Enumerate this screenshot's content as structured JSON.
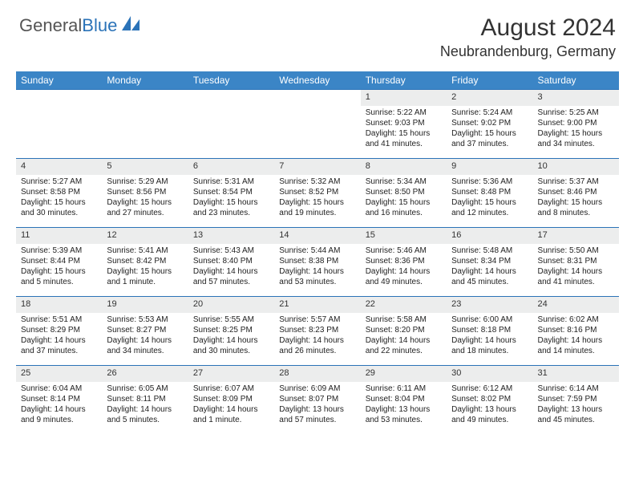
{
  "brand": {
    "name_part1": "General",
    "name_part2": "Blue"
  },
  "title": "August 2024",
  "location": "Neubrandenburg, Germany",
  "colors": {
    "header_bg": "#3b85c6",
    "header_text": "#ffffff",
    "daynum_bg": "#eceded",
    "border": "#2b73b8",
    "brand_gray": "#555555",
    "brand_blue": "#2b73b8",
    "text": "#222222"
  },
  "typography": {
    "title_fontsize": 30,
    "location_fontsize": 18,
    "weekday_fontsize": 12,
    "daynum_fontsize": 11,
    "cell_fontsize": 10
  },
  "weekdays": [
    "Sunday",
    "Monday",
    "Tuesday",
    "Wednesday",
    "Thursday",
    "Friday",
    "Saturday"
  ],
  "weeks": [
    [
      null,
      null,
      null,
      null,
      {
        "n": "1",
        "sr": "5:22 AM",
        "ss": "9:03 PM",
        "dl": "15 hours and 41 minutes."
      },
      {
        "n": "2",
        "sr": "5:24 AM",
        "ss": "9:02 PM",
        "dl": "15 hours and 37 minutes."
      },
      {
        "n": "3",
        "sr": "5:25 AM",
        "ss": "9:00 PM",
        "dl": "15 hours and 34 minutes."
      }
    ],
    [
      {
        "n": "4",
        "sr": "5:27 AM",
        "ss": "8:58 PM",
        "dl": "15 hours and 30 minutes."
      },
      {
        "n": "5",
        "sr": "5:29 AM",
        "ss": "8:56 PM",
        "dl": "15 hours and 27 minutes."
      },
      {
        "n": "6",
        "sr": "5:31 AM",
        "ss": "8:54 PM",
        "dl": "15 hours and 23 minutes."
      },
      {
        "n": "7",
        "sr": "5:32 AM",
        "ss": "8:52 PM",
        "dl": "15 hours and 19 minutes."
      },
      {
        "n": "8",
        "sr": "5:34 AM",
        "ss": "8:50 PM",
        "dl": "15 hours and 16 minutes."
      },
      {
        "n": "9",
        "sr": "5:36 AM",
        "ss": "8:48 PM",
        "dl": "15 hours and 12 minutes."
      },
      {
        "n": "10",
        "sr": "5:37 AM",
        "ss": "8:46 PM",
        "dl": "15 hours and 8 minutes."
      }
    ],
    [
      {
        "n": "11",
        "sr": "5:39 AM",
        "ss": "8:44 PM",
        "dl": "15 hours and 5 minutes."
      },
      {
        "n": "12",
        "sr": "5:41 AM",
        "ss": "8:42 PM",
        "dl": "15 hours and 1 minute."
      },
      {
        "n": "13",
        "sr": "5:43 AM",
        "ss": "8:40 PM",
        "dl": "14 hours and 57 minutes."
      },
      {
        "n": "14",
        "sr": "5:44 AM",
        "ss": "8:38 PM",
        "dl": "14 hours and 53 minutes."
      },
      {
        "n": "15",
        "sr": "5:46 AM",
        "ss": "8:36 PM",
        "dl": "14 hours and 49 minutes."
      },
      {
        "n": "16",
        "sr": "5:48 AM",
        "ss": "8:34 PM",
        "dl": "14 hours and 45 minutes."
      },
      {
        "n": "17",
        "sr": "5:50 AM",
        "ss": "8:31 PM",
        "dl": "14 hours and 41 minutes."
      }
    ],
    [
      {
        "n": "18",
        "sr": "5:51 AM",
        "ss": "8:29 PM",
        "dl": "14 hours and 37 minutes."
      },
      {
        "n": "19",
        "sr": "5:53 AM",
        "ss": "8:27 PM",
        "dl": "14 hours and 34 minutes."
      },
      {
        "n": "20",
        "sr": "5:55 AM",
        "ss": "8:25 PM",
        "dl": "14 hours and 30 minutes."
      },
      {
        "n": "21",
        "sr": "5:57 AM",
        "ss": "8:23 PM",
        "dl": "14 hours and 26 minutes."
      },
      {
        "n": "22",
        "sr": "5:58 AM",
        "ss": "8:20 PM",
        "dl": "14 hours and 22 minutes."
      },
      {
        "n": "23",
        "sr": "6:00 AM",
        "ss": "8:18 PM",
        "dl": "14 hours and 18 minutes."
      },
      {
        "n": "24",
        "sr": "6:02 AM",
        "ss": "8:16 PM",
        "dl": "14 hours and 14 minutes."
      }
    ],
    [
      {
        "n": "25",
        "sr": "6:04 AM",
        "ss": "8:14 PM",
        "dl": "14 hours and 9 minutes."
      },
      {
        "n": "26",
        "sr": "6:05 AM",
        "ss": "8:11 PM",
        "dl": "14 hours and 5 minutes."
      },
      {
        "n": "27",
        "sr": "6:07 AM",
        "ss": "8:09 PM",
        "dl": "14 hours and 1 minute."
      },
      {
        "n": "28",
        "sr": "6:09 AM",
        "ss": "8:07 PM",
        "dl": "13 hours and 57 minutes."
      },
      {
        "n": "29",
        "sr": "6:11 AM",
        "ss": "8:04 PM",
        "dl": "13 hours and 53 minutes."
      },
      {
        "n": "30",
        "sr": "6:12 AM",
        "ss": "8:02 PM",
        "dl": "13 hours and 49 minutes."
      },
      {
        "n": "31",
        "sr": "6:14 AM",
        "ss": "7:59 PM",
        "dl": "13 hours and 45 minutes."
      }
    ]
  ],
  "labels": {
    "sunrise": "Sunrise:",
    "sunset": "Sunset:",
    "daylight": "Daylight:"
  }
}
